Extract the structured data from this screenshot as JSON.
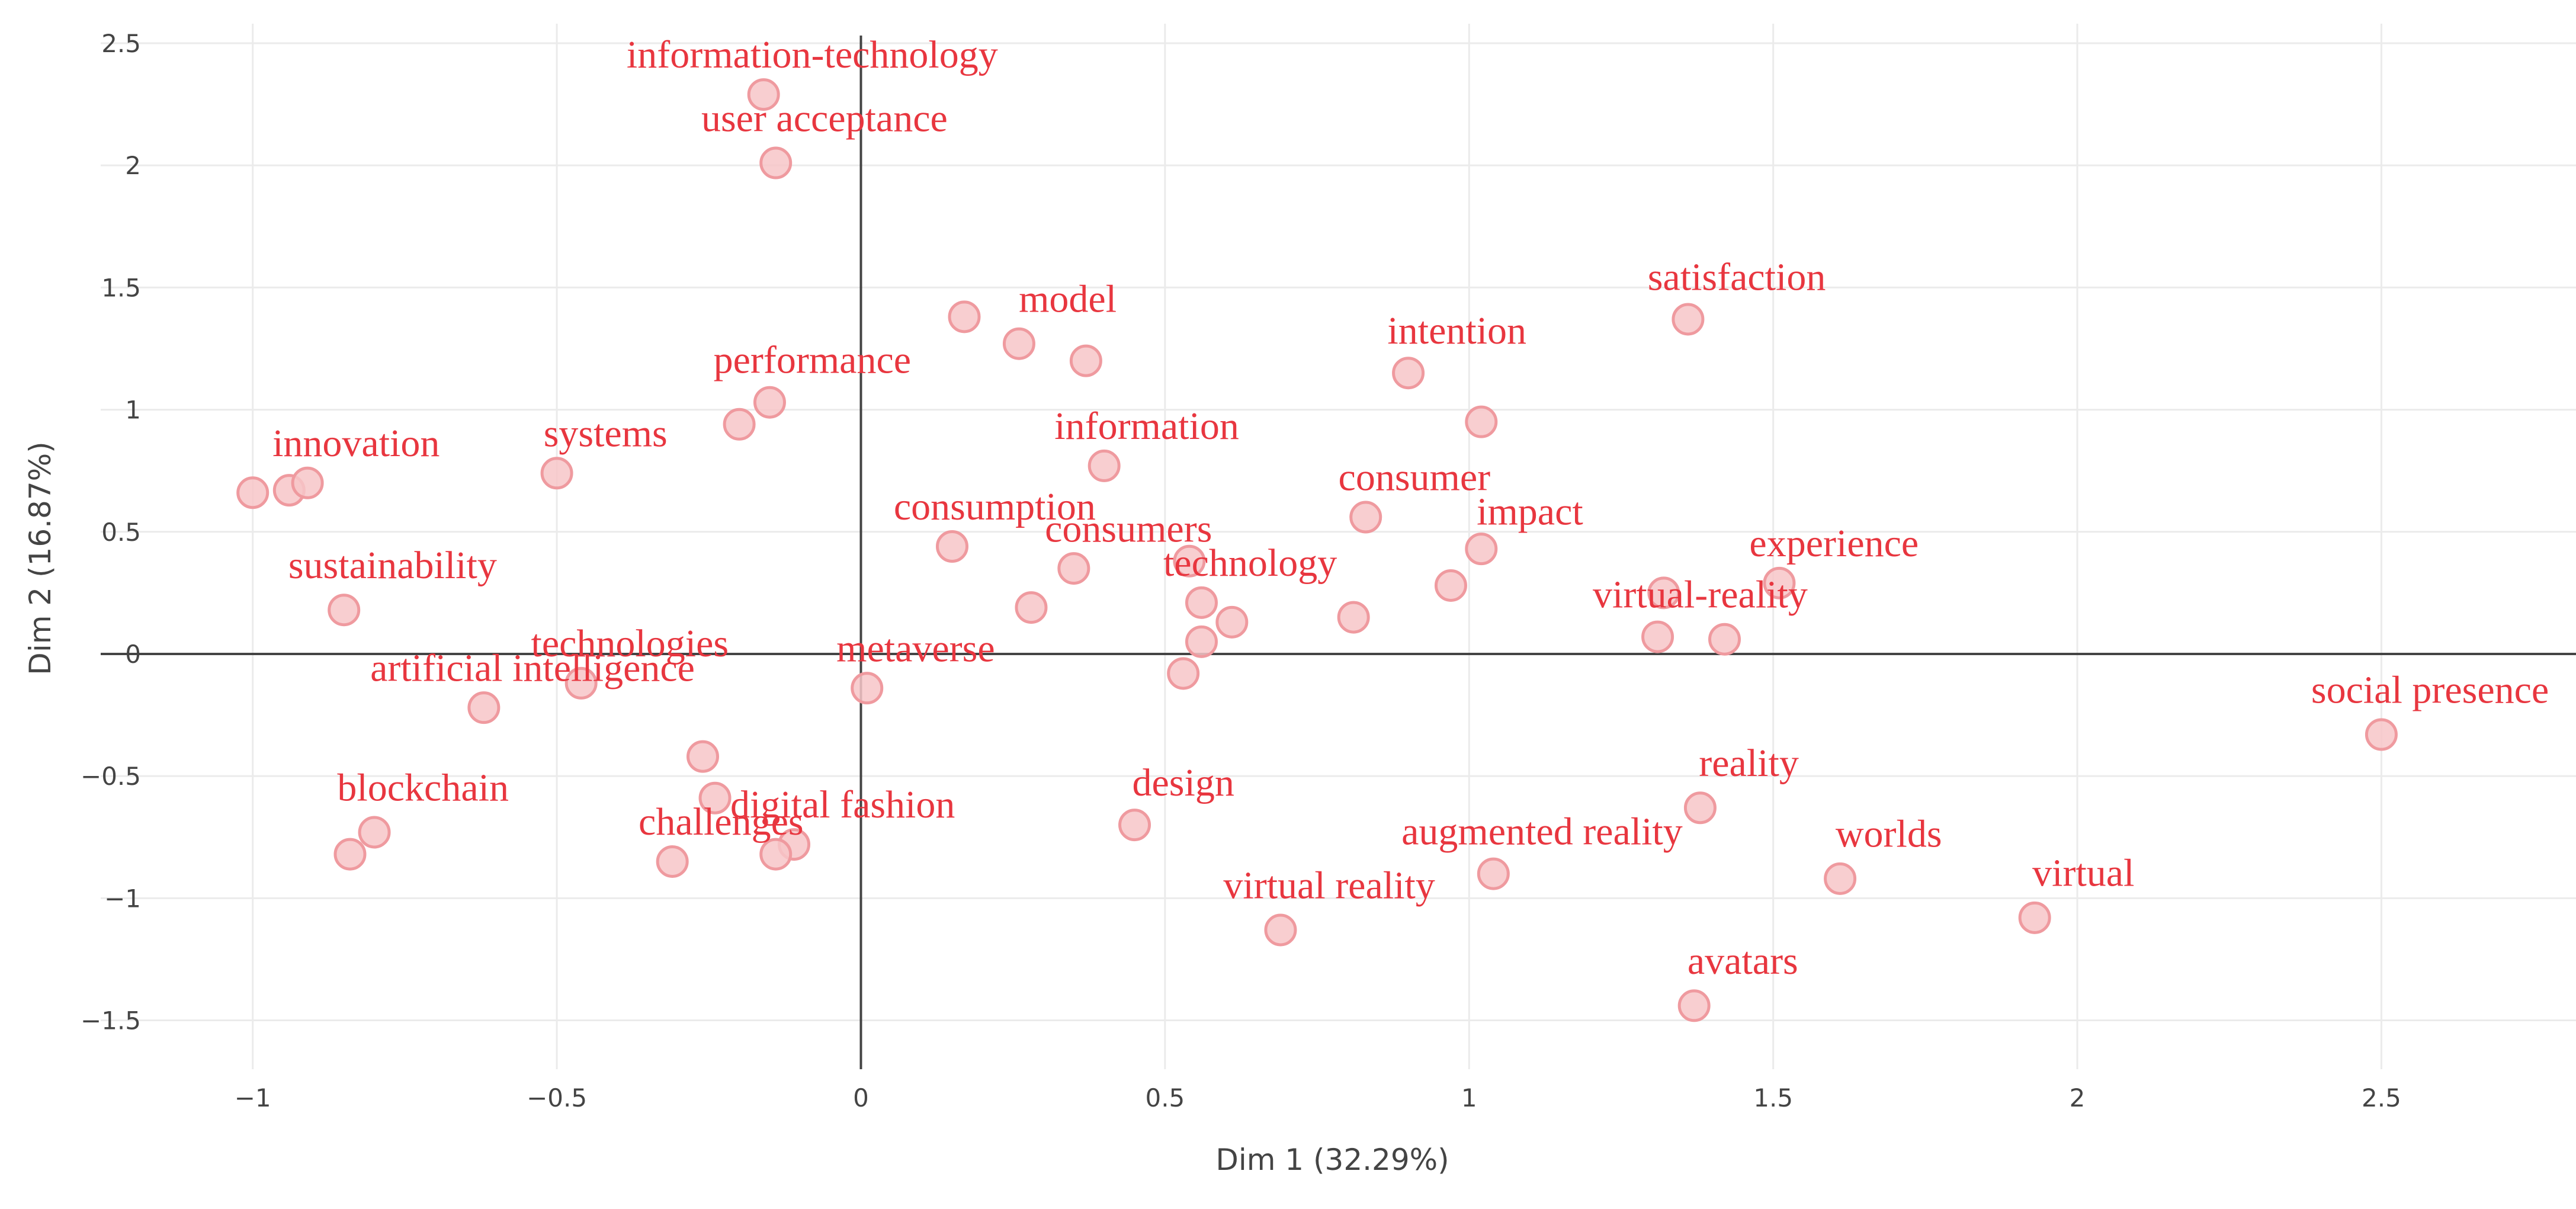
{
  "colors": {
    "accent": "#e8363f",
    "point_fill": "#f7c5c8",
    "point_stroke": "#ef9a9f",
    "grid": "#ebebeb",
    "axis": "#444444"
  },
  "chart_data": {
    "type": "scatter",
    "title": "",
    "xlabel": "Dim 1 (32.29%)",
    "ylabel": "Dim 2 (16.87%)",
    "xlim": [
      -1.25,
      2.82
    ],
    "ylim": [
      -1.7,
      2.58
    ],
    "xticks": [
      -1,
      -0.5,
      0,
      0.5,
      1,
      1.5,
      2,
      2.5
    ],
    "xtick_labels": [
      "−1",
      "−0.5",
      "0",
      "0.5",
      "1",
      "1.5",
      "2",
      "2.5"
    ],
    "yticks": [
      -1.5,
      -1,
      -0.5,
      0,
      0.5,
      1,
      1.5,
      2,
      2.5
    ],
    "ytick_labels": [
      "−1.5",
      "−1",
      "−0.5",
      "0",
      "0.5",
      "1",
      "1.5",
      "2",
      "2.5"
    ],
    "grid": true,
    "points": [
      {
        "x": -0.16,
        "y": 2.29
      },
      {
        "x": -0.14,
        "y": 2.01
      },
      {
        "x": 0.17,
        "y": 1.38
      },
      {
        "x": 0.26,
        "y": 1.27
      },
      {
        "x": 0.37,
        "y": 1.2
      },
      {
        "x": -0.15,
        "y": 1.03
      },
      {
        "x": -0.2,
        "y": 0.94
      },
      {
        "x": -1.0,
        "y": 0.66
      },
      {
        "x": -0.94,
        "y": 0.67
      },
      {
        "x": -0.91,
        "y": 0.7
      },
      {
        "x": -0.5,
        "y": 0.74
      },
      {
        "x": 0.4,
        "y": 0.77
      },
      {
        "x": 0.9,
        "y": 1.15
      },
      {
        "x": 1.36,
        "y": 1.37
      },
      {
        "x": 1.02,
        "y": 0.95
      },
      {
        "x": 0.15,
        "y": 0.44
      },
      {
        "x": 0.35,
        "y": 0.35
      },
      {
        "x": 0.28,
        "y": 0.19
      },
      {
        "x": 0.54,
        "y": 0.38
      },
      {
        "x": 0.56,
        "y": 0.21
      },
      {
        "x": 0.61,
        "y": 0.13
      },
      {
        "x": 0.83,
        "y": 0.56
      },
      {
        "x": 0.81,
        "y": 0.15
      },
      {
        "x": 0.97,
        "y": 0.28
      },
      {
        "x": 1.02,
        "y": 0.43
      },
      {
        "x": 1.51,
        "y": 0.29
      },
      {
        "x": 1.32,
        "y": 0.25
      },
      {
        "x": 1.31,
        "y": 0.07
      },
      {
        "x": 1.42,
        "y": 0.06
      },
      {
        "x": 0.56,
        "y": 0.05
      },
      {
        "x": 0.53,
        "y": -0.08
      },
      {
        "x": -0.85,
        "y": 0.18
      },
      {
        "x": -0.62,
        "y": -0.22
      },
      {
        "x": -0.46,
        "y": -0.12
      },
      {
        "x": 0.01,
        "y": -0.14
      },
      {
        "x": -0.26,
        "y": -0.42
      },
      {
        "x": -0.24,
        "y": -0.59
      },
      {
        "x": -0.11,
        "y": -0.78
      },
      {
        "x": -0.14,
        "y": -0.82
      },
      {
        "x": -0.31,
        "y": -0.85
      },
      {
        "x": -0.8,
        "y": -0.73
      },
      {
        "x": -0.84,
        "y": -0.82
      },
      {
        "x": 0.45,
        "y": -0.7
      },
      {
        "x": 1.04,
        "y": -0.9
      },
      {
        "x": 0.69,
        "y": -1.13
      },
      {
        "x": 1.38,
        "y": -0.63
      },
      {
        "x": 1.61,
        "y": -0.92
      },
      {
        "x": 1.93,
        "y": -1.08
      },
      {
        "x": 1.37,
        "y": -1.44
      },
      {
        "x": 2.5,
        "y": -0.33
      }
    ],
    "annotations": [
      {
        "text": "information-technology",
        "x": -0.08,
        "y": 2.4
      },
      {
        "text": "user acceptance",
        "x": -0.06,
        "y": 2.14
      },
      {
        "text": "model",
        "x": 0.34,
        "y": 1.4
      },
      {
        "text": "performance",
        "x": -0.08,
        "y": 1.15
      },
      {
        "text": "innovation",
        "x": -0.83,
        "y": 0.81
      },
      {
        "text": "systems",
        "x": -0.42,
        "y": 0.85
      },
      {
        "text": "information",
        "x": 0.47,
        "y": 0.88
      },
      {
        "text": "intention",
        "x": 0.98,
        "y": 1.27
      },
      {
        "text": "satisfaction",
        "x": 1.44,
        "y": 1.49
      },
      {
        "text": "consumer",
        "x": 0.91,
        "y": 0.67
      },
      {
        "text": "impact",
        "x": 1.1,
        "y": 0.53
      },
      {
        "text": "consumption",
        "x": 0.22,
        "y": 0.55
      },
      {
        "text": "consumers",
        "x": 0.44,
        "y": 0.46
      },
      {
        "text": "technology",
        "x": 0.64,
        "y": 0.32
      },
      {
        "text": "experience",
        "x": 1.6,
        "y": 0.4
      },
      {
        "text": "virtual-reality",
        "x": 1.38,
        "y": 0.19
      },
      {
        "text": "sustainability",
        "x": -0.77,
        "y": 0.31
      },
      {
        "text": "technologies",
        "x": -0.38,
        "y": -0.01
      },
      {
        "text": "artificial intelligence",
        "x": -0.54,
        "y": -0.11
      },
      {
        "text": "metaverse",
        "x": 0.09,
        "y": -0.03
      },
      {
        "text": "social presence",
        "x": 2.58,
        "y": -0.2
      },
      {
        "text": "blockchain",
        "x": -0.72,
        "y": -0.6
      },
      {
        "text": "digital fashion",
        "x": -0.03,
        "y": -0.67
      },
      {
        "text": "challenges",
        "x": -0.23,
        "y": -0.74
      },
      {
        "text": "design",
        "x": 0.53,
        "y": -0.58
      },
      {
        "text": "reality",
        "x": 1.46,
        "y": -0.5
      },
      {
        "text": "augmented reality",
        "x": 1.12,
        "y": -0.78
      },
      {
        "text": "worlds",
        "x": 1.69,
        "y": -0.79
      },
      {
        "text": "virtual reality",
        "x": 0.77,
        "y": -1.0
      },
      {
        "text": "virtual",
        "x": 2.01,
        "y": -0.95
      },
      {
        "text": "avatars",
        "x": 1.45,
        "y": -1.31
      }
    ]
  }
}
